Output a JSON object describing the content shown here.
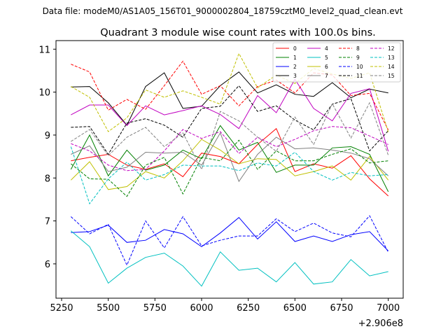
{
  "header": {
    "data_file": "Data file: modeM0/AS1A05_156T01_9000002804_18759cztM0_level2_quad_clean.evt"
  },
  "chart_data": {
    "type": "line",
    "title": "Quadrant 3 module wise count rates with 100.0s bins.",
    "xlabel": "",
    "ylabel": "",
    "x_offset_label": "+2.906e8",
    "x_ticks": [
      5250,
      5500,
      5750,
      6000,
      6250,
      6500,
      6750,
      7000
    ],
    "y_ticks": [
      6,
      7,
      8,
      9,
      10,
      11
    ],
    "xlim": [
      5220,
      7080
    ],
    "ylim": [
      5.2,
      11.2
    ],
    "legend_position": "top-right",
    "x": [
      5300,
      5400,
      5500,
      5600,
      5700,
      5800,
      5900,
      6000,
      6100,
      6200,
      6300,
      6400,
      6500,
      6600,
      6700,
      6800,
      6900,
      7000
    ],
    "series": [
      {
        "name": "0",
        "color": "#ff0000",
        "dash": "solid",
        "values": [
          8.4,
          8.48,
          8.55,
          8.3,
          8.2,
          8.33,
          8.03,
          8.58,
          8.5,
          8.33,
          8.78,
          9.15,
          8.15,
          8.33,
          8.23,
          8.52,
          7.98,
          7.58
        ]
      },
      {
        "name": "1",
        "color": "#008000",
        "dash": "solid",
        "values": [
          8.2,
          9.0,
          8.05,
          8.65,
          8.18,
          8.3,
          8.65,
          8.45,
          9.22,
          8.65,
          8.83,
          8.13,
          8.3,
          8.3,
          8.7,
          8.73,
          8.55,
          7.68
        ]
      },
      {
        "name": "2",
        "color": "#0000ff",
        "dash": "solid",
        "values": [
          6.73,
          6.75,
          6.9,
          6.5,
          6.55,
          6.8,
          6.7,
          6.4,
          6.72,
          7.08,
          6.58,
          6.98,
          6.52,
          6.65,
          6.52,
          6.68,
          6.75,
          6.3
        ]
      },
      {
        "name": "3",
        "color": "#000000",
        "dash": "solid",
        "values": [
          10.12,
          10.13,
          9.75,
          9.23,
          10.13,
          10.45,
          9.62,
          9.67,
          10.15,
          10.47,
          9.98,
          10.17,
          9.95,
          9.9,
          10.22,
          9.87,
          10.07,
          9.98
        ]
      },
      {
        "name": "4",
        "color": "#c000c0",
        "dash": "solid",
        "values": [
          9.47,
          9.7,
          9.7,
          9.22,
          9.68,
          9.47,
          9.57,
          9.68,
          9.48,
          9.15,
          9.92,
          9.52,
          10.3,
          9.62,
          9.33,
          9.97,
          10.08,
          8.62
        ]
      },
      {
        "name": "5",
        "color": "#00c0c0",
        "dash": "solid",
        "values": [
          6.77,
          6.4,
          5.55,
          5.9,
          6.15,
          6.25,
          5.95,
          5.48,
          6.28,
          5.85,
          5.9,
          5.58,
          6.03,
          5.53,
          5.58,
          6.1,
          5.72,
          5.82
        ]
      },
      {
        "name": "6",
        "color": "#c0c000",
        "dash": "solid",
        "values": [
          7.95,
          8.38,
          7.73,
          7.8,
          8.15,
          8.0,
          8.4,
          8.9,
          8.65,
          8.33,
          8.45,
          8.43,
          8.05,
          8.15,
          8.28,
          7.95,
          8.5,
          7.95
        ]
      },
      {
        "name": "7",
        "color": "#808080",
        "dash": "solid",
        "values": [
          8.55,
          8.75,
          8.15,
          8.25,
          8.6,
          8.58,
          8.6,
          8.3,
          9.05,
          7.92,
          8.55,
          8.95,
          8.68,
          8.7,
          8.65,
          8.58,
          8.45,
          8.05
        ]
      },
      {
        "name": "8",
        "color": "#ff0000",
        "dash": "dashed",
        "values": [
          10.65,
          10.47,
          9.58,
          9.83,
          9.6,
          10.15,
          10.72,
          9.95,
          10.15,
          9.68,
          10.13,
          10.28,
          9.98,
          10.45,
          10.4,
          9.92,
          9.97,
          9.12
        ]
      },
      {
        "name": "9",
        "color": "#008000",
        "dash": "dashed",
        "values": [
          8.33,
          7.98,
          7.97,
          7.57,
          8.3,
          8.48,
          7.63,
          8.48,
          8.4,
          8.88,
          8.2,
          8.63,
          8.4,
          8.4,
          8.55,
          8.68,
          8.35,
          8.4
        ]
      },
      {
        "name": "10",
        "color": "#0000ff",
        "dash": "dashed",
        "values": [
          7.1,
          6.7,
          6.92,
          5.97,
          7.0,
          6.37,
          7.1,
          6.42,
          6.55,
          6.65,
          6.65,
          7.05,
          6.75,
          6.95,
          6.72,
          6.63,
          7.12,
          6.27
        ]
      },
      {
        "name": "11",
        "color": "#000000",
        "dash": "dashed",
        "values": [
          9.18,
          9.2,
          8.55,
          9.28,
          9.38,
          9.23,
          8.95,
          9.62,
          9.67,
          10.15,
          9.55,
          9.68,
          9.35,
          9.12,
          9.72,
          9.85,
          8.63,
          9.1
        ]
      },
      {
        "name": "12",
        "color": "#c000c0",
        "dash": "dashed",
        "values": [
          8.8,
          8.63,
          8.3,
          8.17,
          8.2,
          8.63,
          9.13,
          8.92,
          9.08,
          8.57,
          8.95,
          8.73,
          8.9,
          9.1,
          9.2,
          9.17,
          8.98,
          8.78
        ]
      },
      {
        "name": "13",
        "color": "#00c0c0",
        "dash": "dashed",
        "values": [
          8.73,
          7.4,
          7.98,
          8.37,
          7.95,
          8.08,
          8.3,
          8.28,
          8.28,
          8.17,
          8.35,
          8.28,
          8.6,
          8.15,
          7.95,
          8.13,
          8.05,
          8.08
        ]
      },
      {
        "name": "14",
        "color": "#c0c000",
        "dash": "dashed",
        "values": [
          10.13,
          9.88,
          9.08,
          9.4,
          10.05,
          9.88,
          10.03,
          9.88,
          9.72,
          10.9,
          10.1,
          10.4,
          10.2,
          10.55,
          10.42,
          10.32,
          10.45,
          9.07
        ]
      },
      {
        "name": "15",
        "color": "#808080",
        "dash": "dashed",
        "values": [
          8.85,
          9.13,
          8.52,
          8.95,
          9.18,
          8.73,
          9.05,
          8.2,
          9.55,
          9.33,
          8.95,
          8.62,
          9.42,
          8.78,
          9.73,
          8.93,
          9.75,
          8.53
        ]
      }
    ]
  }
}
